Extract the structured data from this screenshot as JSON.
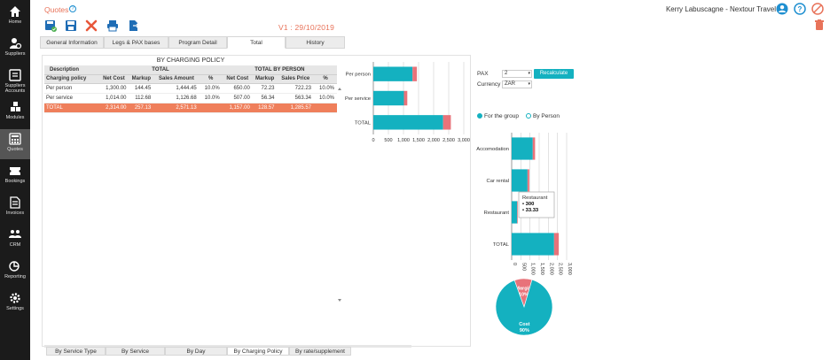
{
  "sidebar": {
    "items": [
      {
        "label": "Home"
      },
      {
        "label": "Suppliers"
      },
      {
        "label": "Suppliers Accounts"
      },
      {
        "label": "Modules"
      },
      {
        "label": "Quotes"
      },
      {
        "label": "Bookings"
      },
      {
        "label": "Invoices"
      },
      {
        "label": "CRM"
      },
      {
        "label": "Reporting"
      },
      {
        "label": "Settings"
      }
    ]
  },
  "header": {
    "title": "Quotes",
    "user": "Kerry Labuscagne - Nextour Travel"
  },
  "version": "V1 : 29/10/2019",
  "tabs": [
    {
      "label": "General Information"
    },
    {
      "label": "Legs & PAX bases"
    },
    {
      "label": "Program Detail"
    },
    {
      "label": "Total"
    },
    {
      "label": "History"
    }
  ],
  "table": {
    "title": "BY CHARGING POLICY",
    "group_headers": {
      "description": "Description",
      "total": "TOTAL",
      "per_person": "TOTAL BY PERSON"
    },
    "columns": [
      "Charging policy",
      "Net Cost",
      "Markup",
      "Sales Amount",
      "%",
      "Net Cost",
      "Markup",
      "Sales Price",
      "%"
    ],
    "rows": [
      [
        "Per person",
        "1,300.00",
        "144.45",
        "1,444.45",
        "10.0%",
        "650.00",
        "72.23",
        "722.23",
        "10.0%"
      ],
      [
        "Per service",
        "1,014.00",
        "112.68",
        "1,126.68",
        "10.0%",
        "507.00",
        "56.34",
        "563.34",
        "10.0%"
      ]
    ],
    "total_row": [
      "TOTAL",
      "2,314.00",
      "257.13",
      "2,571.13",
      "",
      "1,157.00",
      "128.57",
      "1,285.57",
      ""
    ]
  },
  "bottom_tabs": [
    {
      "label": "By Service Type"
    },
    {
      "label": "By Service"
    },
    {
      "label": "By Day"
    },
    {
      "label": "By Charging Policy"
    },
    {
      "label": "By rate/supplement"
    }
  ],
  "controls": {
    "pax_label": "PAX",
    "pax_value": "2",
    "currency_label": "Currency",
    "currency_value": "ZAR",
    "recalc_label": "Recalculate",
    "radio_group_label": "For the group",
    "radio_person_label": "By Person"
  },
  "colors": {
    "cost": "#14b1c0",
    "margin": "#e8737a",
    "accent": "#e8735a"
  },
  "chart_data": [
    {
      "type": "bar",
      "orientation": "horizontal",
      "stacked": true,
      "categories": [
        "Per person",
        "Per service",
        "TOTAL"
      ],
      "series": [
        {
          "values": [
            1300,
            1014,
            2314
          ]
        },
        {
          "values": [
            144.45,
            112.68,
            257.13
          ]
        }
      ],
      "x_ticks": [
        "0",
        "500",
        "1,000",
        "1,500",
        "2,000",
        "2,500",
        "3,000"
      ],
      "xlim": [
        0,
        3000
      ]
    },
    {
      "type": "bar",
      "orientation": "horizontal",
      "stacked": true,
      "categories": [
        "Accomodation",
        "Car rental",
        "Restaurant",
        "TOTAL"
      ],
      "series": [
        {
          "values": [
            1150,
            864,
            300,
            2314
          ]
        },
        {
          "values": [
            127.8,
            96,
            33.33,
            257.13
          ]
        }
      ],
      "x_ticks": [
        "0",
        "500",
        "1,000",
        "1,500",
        "2,000",
        "2,500",
        "3,000"
      ],
      "xlim": [
        0,
        3000
      ],
      "tooltip": {
        "title": "Restaurant",
        "line1": "• 300",
        "line2": "• 33.33"
      }
    },
    {
      "type": "pie",
      "slices": [
        {
          "name": "Margin",
          "value": 10,
          "label": "10%"
        },
        {
          "name": "Cost",
          "value": 90,
          "label": "90%"
        }
      ]
    }
  ]
}
